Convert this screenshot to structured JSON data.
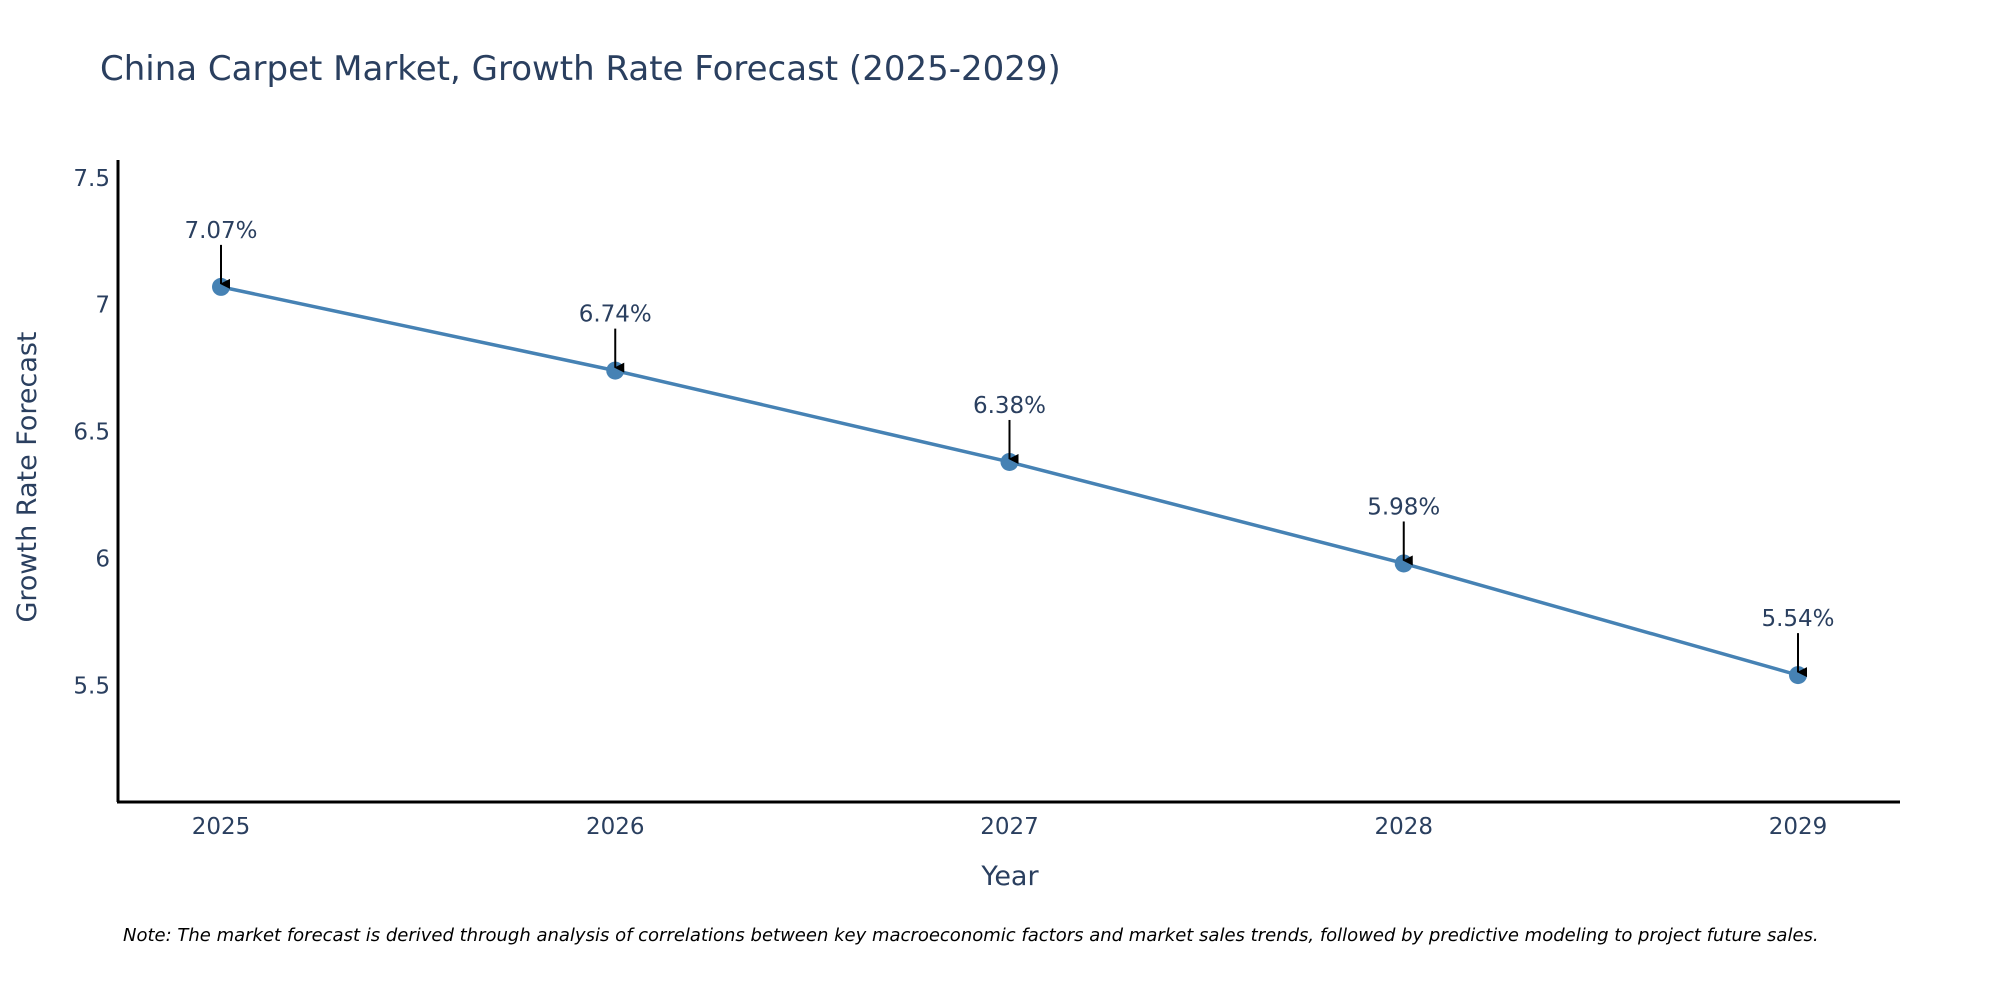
{
  "chart_data": {
    "type": "line",
    "title": "China Carpet Market, Growth Rate Forecast (2025-2029)",
    "xlabel": "Year",
    "ylabel": "Growth Rate Forecast",
    "categories": [
      "2025",
      "2026",
      "2027",
      "2028",
      "2029"
    ],
    "values": [
      7.07,
      6.74,
      6.38,
      5.98,
      5.54
    ],
    "data_labels": [
      "7.07%",
      "6.74%",
      "6.38%",
      "5.98%",
      "5.54%"
    ],
    "ylim": [
      5.04,
      7.57
    ],
    "y_ticks": [
      5.5,
      6,
      6.5,
      7,
      7.5
    ],
    "y_tick_labels": [
      "5.5",
      "6",
      "6.5",
      "7",
      "7.5"
    ],
    "grid": false,
    "series_color": "#4682b4",
    "note": "Note: The market forecast is derived through analysis of correlations between key macroeconomic factors and market sales trends, followed by predictive modeling to project future sales."
  }
}
